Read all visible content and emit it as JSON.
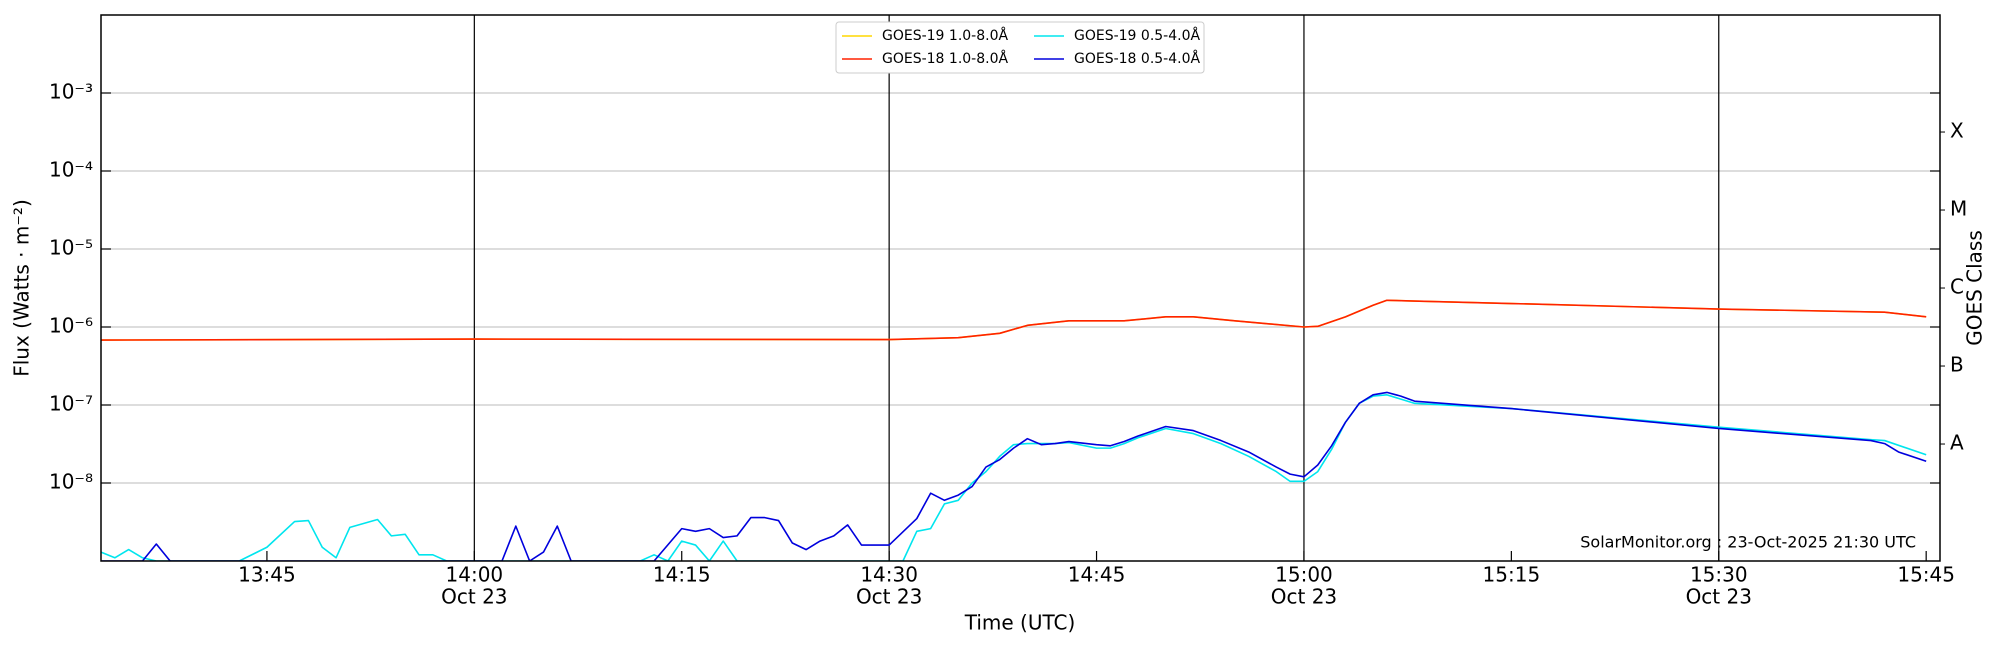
{
  "chart_data": {
    "type": "line",
    "xlabel": "Time (UTC)",
    "ylabel": "Flux (Watts · m⁻²)",
    "y2label": "GOES Class",
    "annotation": "SolarMonitor.org : 23-Oct-2025 21:30 UTC",
    "log_y": true,
    "grid": true,
    "legend": "upper center",
    "xlim": [
      "13:33",
      "15:46"
    ],
    "xticks": [
      "13:45",
      {
        "value": "14:00",
        "label": "14:00",
        "date": "Oct 23"
      },
      "14:15",
      {
        "value": "14:30",
        "label": "14:30",
        "date": "Oct 23"
      },
      "14:45",
      {
        "value": "15:00",
        "label": "15:00",
        "date": "Oct 23"
      },
      "15:15",
      {
        "value": "15:30",
        "label": "15:30",
        "date": "Oct 23"
      },
      "15:45"
    ],
    "ylim": [
      1e-09,
      0.01
    ],
    "yticks": [
      {
        "value": 1e-08,
        "label": "10⁻⁸"
      },
      {
        "value": 1e-07,
        "label": "10⁻⁷"
      },
      {
        "value": 1e-06,
        "label": "10⁻⁶"
      },
      {
        "value": 1e-05,
        "label": "10⁻⁵"
      },
      {
        "value": 0.0001,
        "label": "10⁻⁴"
      },
      {
        "value": 0.001,
        "label": "10⁻³"
      }
    ],
    "y2lim": [
      1e-09,
      0.01
    ],
    "y2ticks": [
      {
        "value": 3.16e-08,
        "label": "A"
      },
      {
        "value": 3.16e-07,
        "label": "B"
      },
      {
        "value": 3.16e-06,
        "label": "C"
      },
      {
        "value": 3.16e-05,
        "label": "M"
      },
      {
        "value": 0.000316,
        "label": "X"
      }
    ],
    "series": [
      {
        "name": "GOES-19 1.0-8.0Å",
        "color": "#ffd700",
        "x": [
          "13:33",
          "14:00",
          "14:30",
          "14:35",
          "14:38",
          "14:40",
          "14:43",
          "14:47",
          "14:50",
          "14:52",
          "14:55",
          "15:00",
          "15:01",
          "15:03",
          "15:05",
          "15:06",
          "15:08",
          "15:15",
          "15:30",
          "15:42",
          "15:45"
        ],
        "values": [
          6.8e-07,
          7e-07,
          6.9e-07,
          7.3e-07,
          8.3e-07,
          1.05e-06,
          1.2e-06,
          1.2e-06,
          1.35e-06,
          1.35e-06,
          1.2e-06,
          1e-06,
          1.02e-06,
          1.35e-06,
          1.9e-06,
          2.2e-06,
          2.15e-06,
          2e-06,
          1.7e-06,
          1.55e-06,
          1.35e-06
        ]
      },
      {
        "name": "GOES-18 1.0-8.0Å",
        "color": "#ff2200",
        "x": [
          "13:33",
          "14:00",
          "14:30",
          "14:35",
          "14:38",
          "14:40",
          "14:43",
          "14:47",
          "14:50",
          "14:52",
          "14:55",
          "15:00",
          "15:01",
          "15:03",
          "15:05",
          "15:06",
          "15:08",
          "15:15",
          "15:30",
          "15:42",
          "15:45"
        ],
        "values": [
          6.8e-07,
          7e-07,
          6.9e-07,
          7.3e-07,
          8.3e-07,
          1.05e-06,
          1.2e-06,
          1.2e-06,
          1.35e-06,
          1.35e-06,
          1.2e-06,
          1e-06,
          1.02e-06,
          1.35e-06,
          1.9e-06,
          2.2e-06,
          2.15e-06,
          2e-06,
          1.7e-06,
          1.55e-06,
          1.35e-06
        ]
      },
      {
        "name": "GOES-19 0.5-4.0Å",
        "color": "#00e5ee",
        "x": [
          "13:33",
          "13:34",
          "13:35",
          "13:36",
          "13:37",
          "13:43",
          "13:45",
          "13:47",
          "13:48",
          "13:49",
          "13:50",
          "13:51",
          "13:53",
          "13:54",
          "13:55",
          "13:56",
          "13:57",
          "13:58",
          "14:12",
          "14:13",
          "14:14",
          "14:15",
          "14:16",
          "14:17",
          "14:18",
          "14:19",
          "14:31",
          "14:32",
          "14:33",
          "14:34",
          "14:35",
          "14:36",
          "14:37",
          "14:38",
          "14:39",
          "14:40",
          "14:42",
          "14:43",
          "14:45",
          "14:46",
          "14:47",
          "14:48",
          "14:50",
          "14:52",
          "14:54",
          "14:56",
          "14:58",
          "14:59",
          "15:00",
          "15:01",
          "15:02",
          "15:03",
          "15:04",
          "15:05",
          "15:06",
          "15:08",
          "15:15",
          "15:30",
          "15:41",
          "15:42",
          "15:45"
        ],
        "values": [
          1.3e-09,
          1.1e-09,
          1.4e-09,
          1.1e-09,
          1e-09,
          1e-09,
          1.5e-09,
          3.2e-09,
          3.3e-09,
          1.5e-09,
          1.1e-09,
          2.7e-09,
          3.4e-09,
          2.1e-09,
          2.2e-09,
          1.2e-09,
          1.2e-09,
          1e-09,
          1e-09,
          1.2e-09,
          1e-09,
          1.8e-09,
          1.6e-09,
          1e-09,
          1.8e-09,
          1e-09,
          1e-09,
          2.4e-09,
          2.6e-09,
          5.4e-09,
          6e-09,
          1e-08,
          1.4e-08,
          2.2e-08,
          3.1e-08,
          3.2e-08,
          3.2e-08,
          3.3e-08,
          2.8e-08,
          2.8e-08,
          3.2e-08,
          3.8e-08,
          5e-08,
          4.3e-08,
          3.2e-08,
          2.2e-08,
          1.4e-08,
          1.05e-08,
          1.05e-08,
          1.4e-08,
          2.7e-08,
          6e-08,
          1.05e-07,
          1.3e-07,
          1.35e-07,
          1.05e-07,
          9e-08,
          5.2e-08,
          3.6e-08,
          3.5e-08,
          2.3e-08
        ]
      },
      {
        "name": "GOES-18 0.5-4.0Å",
        "color": "#0000dd",
        "x": [
          "13:33",
          "13:36",
          "13:37",
          "13:38",
          "14:02",
          "14:03",
          "14:04",
          "14:05",
          "14:06",
          "14:07",
          "14:13",
          "14:15",
          "14:16",
          "14:17",
          "14:18",
          "14:19",
          "14:20",
          "14:21",
          "14:22",
          "14:23",
          "14:24",
          "14:25",
          "14:26",
          "14:27",
          "14:28",
          "14:30",
          "14:32",
          "14:33",
          "14:34",
          "14:35",
          "14:36",
          "14:37",
          "14:38",
          "14:39",
          "14:40",
          "14:41",
          "14:42",
          "14:43",
          "14:45",
          "14:46",
          "14:47",
          "14:48",
          "14:50",
          "14:52",
          "14:54",
          "14:56",
          "14:58",
          "14:59",
          "15:00",
          "15:01",
          "15:02",
          "15:03",
          "15:04",
          "15:05",
          "15:06",
          "15:07",
          "15:08",
          "15:15",
          "15:30",
          "15:41",
          "15:42",
          "15:43",
          "15:45"
        ],
        "values": [
          1e-09,
          1e-09,
          1.65e-09,
          1e-09,
          1e-09,
          2.8e-09,
          1e-09,
          1.3e-09,
          2.8e-09,
          1e-09,
          1e-09,
          2.6e-09,
          2.4e-09,
          2.6e-09,
          2e-09,
          2.1e-09,
          3.6e-09,
          3.6e-09,
          3.3e-09,
          1.7e-09,
          1.4e-09,
          1.8e-09,
          2.1e-09,
          2.9e-09,
          1.6e-09,
          1.6e-09,
          3.5e-09,
          7.4e-09,
          6e-09,
          7e-09,
          9e-09,
          1.6e-08,
          2e-08,
          2.8e-08,
          3.7e-08,
          3.1e-08,
          3.2e-08,
          3.4e-08,
          3.1e-08,
          3e-08,
          3.4e-08,
          4e-08,
          5.3e-08,
          4.7e-08,
          3.5e-08,
          2.5e-08,
          1.6e-08,
          1.3e-08,
          1.2e-08,
          1.7e-08,
          3e-08,
          6e-08,
          1.05e-07,
          1.35e-07,
          1.45e-07,
          1.3e-07,
          1.12e-07,
          9e-08,
          5e-08,
          3.5e-08,
          3.2e-08,
          2.5e-08,
          1.9e-08
        ]
      }
    ]
  }
}
